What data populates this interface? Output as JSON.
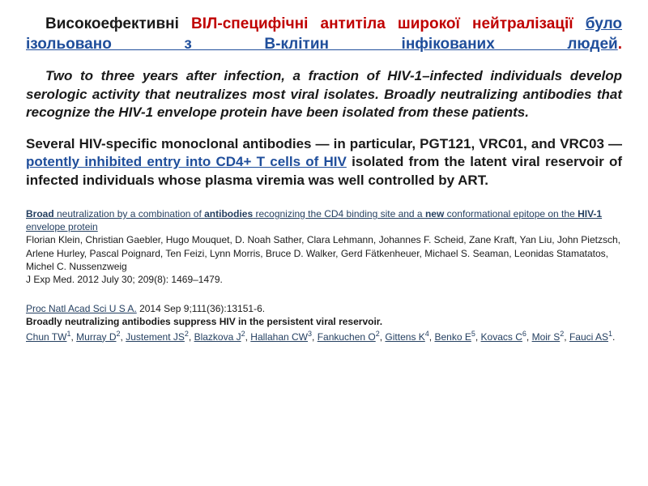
{
  "colors": {
    "background": "#ffffff",
    "text": "#1a1a1a",
    "red": "#c00000",
    "blue_link": "#1f4e9b",
    "dark_blue": "#254061"
  },
  "title": {
    "part1": "Високоефективні",
    "part2": "ВІЛ-специфічні антитіла широкої нейтралізації",
    "part3": "було ізольовано з В-клітин інфікованих людей",
    "dot": "."
  },
  "para1": "Two to three years after infection, a fraction of HIV-1–infected individuals develop serologic activity that neutralizes most viral isolates. Broadly neutralizing antibodies that recognize the HIV-1 envelope protein have been isolated from these patients.",
  "para2": {
    "pre": "Several HIV-specific monoclonal antibodies — in particular, PGT121, VRC01, and VRC03 — ",
    "link": "potently inhibited entry into CD4+ T cells of HIV",
    "post": " isolated from the latent viral reservoir of infected individuals whose plasma viremia was well controlled by ART."
  },
  "ref1": {
    "title_bold1": "Broad",
    "title_mid1": " neutralization by a combination of ",
    "title_bold2": "antibodies",
    "title_mid2": " recognizing the CD4 binding site and a ",
    "title_bold3": "new",
    "title_mid3": " conformational epitope on the ",
    "title_bold4": "HIV-1",
    "title_mid4": " envelope protein",
    "authors": "Florian Klein, Christian Gaebler, Hugo Mouquet, D. Noah Sather, Clara Lehmann, Johannes F. Scheid, Zane Kraft, Yan Liu, John Pietzsch, Arlene Hurley, Pascal Poignard, Ten Feizi, Lynn Morris, Bruce D. Walker, Gerd Fätkenheuer, Michael S. Seaman, Leonidas Stamatatos, Michel C. Nussenzweig",
    "cite": "J Exp Med. 2012 July 30; 209(8): 1469–1479."
  },
  "ref2": {
    "journal": "Proc Natl Acad Sci U S A.",
    "date": " 2014 Sep 9;111(36):13151-6.",
    "title": "Broadly neutralizing antibodies suppress HIV in the persistent viral reservoir.",
    "authors": [
      {
        "name": "Chun TW",
        "sup": "1"
      },
      {
        "name": "Murray D",
        "sup": "2"
      },
      {
        "name": "Justement JS",
        "sup": "2"
      },
      {
        "name": "Blazkova J",
        "sup": "2"
      },
      {
        "name": "Hallahan CW",
        "sup": "3"
      },
      {
        "name": "Fankuchen O",
        "sup": "2"
      },
      {
        "name": "Gittens K",
        "sup": "4"
      },
      {
        "name": "Benko E",
        "sup": "5"
      },
      {
        "name": "Kovacs C",
        "sup": "6"
      },
      {
        "name": "Moir S",
        "sup": "2"
      },
      {
        "name": "Fauci AS",
        "sup": "1"
      }
    ]
  }
}
